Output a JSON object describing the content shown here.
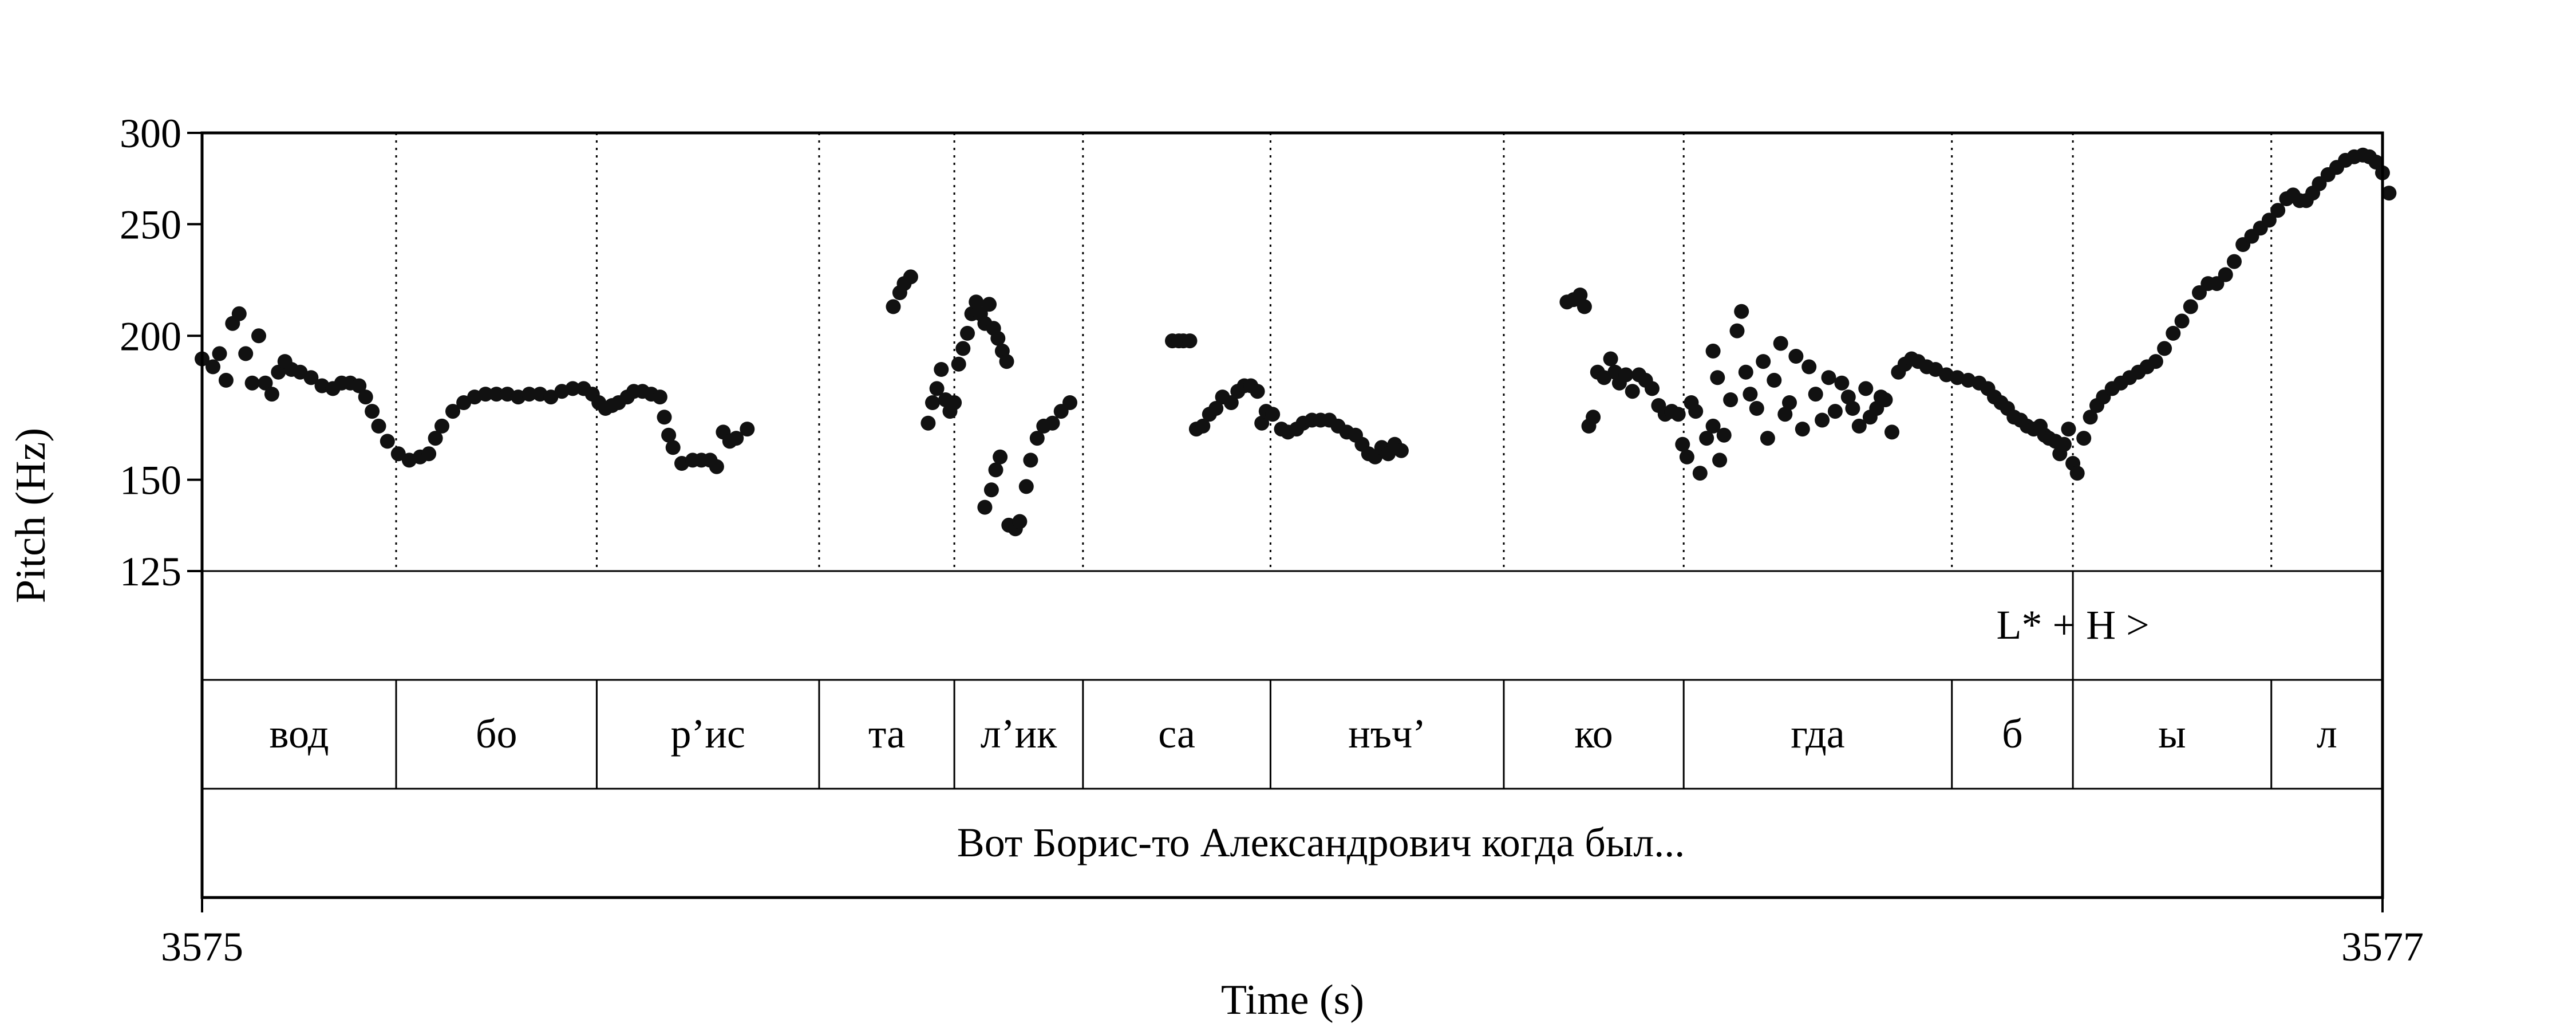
{
  "chart_data": {
    "type": "scatter",
    "xlabel": "Time (s)",
    "ylabel": "Pitch (Hz)",
    "xlim": [
      3575,
      3577
    ],
    "ylim": [
      125,
      300
    ],
    "xticks": [
      "3575",
      "3577"
    ],
    "yticks": [
      {
        "value": 125,
        "label": "125"
      },
      {
        "value": 150,
        "label": "150"
      },
      {
        "value": 200,
        "label": "200"
      },
      {
        "value": 250,
        "label": "250"
      },
      {
        "value": 300,
        "label": "300"
      }
    ],
    "boundaries": [
      3575.178,
      3575.362,
      3575.566,
      3575.69,
      3575.808,
      3575.98,
      3576.194,
      3576.359,
      3576.605,
      3576.716,
      3576.898
    ],
    "tone_tier": [
      {
        "label": "L* + H >",
        "t": 3576.716
      }
    ],
    "syllables": [
      {
        "label": "вод",
        "start": 3575.0,
        "end": 3575.178
      },
      {
        "label": "бо",
        "start": 3575.178,
        "end": 3575.362
      },
      {
        "label": "р’ис",
        "start": 3575.362,
        "end": 3575.566
      },
      {
        "label": "та",
        "start": 3575.566,
        "end": 3575.69
      },
      {
        "label": "л’ик",
        "start": 3575.69,
        "end": 3575.808
      },
      {
        "label": "са",
        "start": 3575.808,
        "end": 3575.98
      },
      {
        "label": "нъч’",
        "start": 3575.98,
        "end": 3576.194
      },
      {
        "label": "ко",
        "start": 3576.194,
        "end": 3576.359
      },
      {
        "label": "гда",
        "start": 3576.359,
        "end": 3576.605
      },
      {
        "label": "б",
        "start": 3576.605,
        "end": 3576.716
      },
      {
        "label": "ы",
        "start": 3576.716,
        "end": 3576.898
      },
      {
        "label": "л",
        "start": 3576.898,
        "end": 3577.0
      }
    ],
    "sentence": "Вот Борис-то Александрович когда был...",
    "pitch_segments": [
      [
        [
          3575.0,
          191
        ],
        [
          3575.01,
          188
        ],
        [
          3575.016,
          193
        ],
        [
          3575.022,
          183
        ],
        [
          3575.028,
          205
        ],
        [
          3575.034,
          209
        ],
        [
          3575.04,
          193
        ],
        [
          3575.046,
          182
        ],
        [
          3575.052,
          200
        ],
        [
          3575.058,
          182
        ],
        [
          3575.064,
          178
        ],
        [
          3575.07,
          186
        ],
        [
          3575.076,
          190
        ],
        [
          3575.082,
          187
        ],
        [
          3575.09,
          186
        ],
        [
          3575.1,
          184
        ],
        [
          3575.11,
          181
        ],
        [
          3575.12,
          180
        ],
        [
          3575.128,
          182
        ],
        [
          3575.136,
          182
        ],
        [
          3575.144,
          181
        ],
        [
          3575.15,
          177
        ],
        [
          3575.156,
          172
        ],
        [
          3575.162,
          167
        ],
        [
          3575.17,
          162
        ],
        [
          3575.18,
          158
        ],
        [
          3575.19,
          156
        ],
        [
          3575.2,
          157
        ],
        [
          3575.208,
          158
        ],
        [
          3575.214,
          163
        ],
        [
          3575.22,
          167
        ],
        [
          3575.23,
          172
        ],
        [
          3575.24,
          175
        ],
        [
          3575.25,
          177
        ],
        [
          3575.26,
          178
        ],
        [
          3575.27,
          178
        ],
        [
          3575.28,
          178
        ],
        [
          3575.29,
          177
        ],
        [
          3575.3,
          178
        ],
        [
          3575.31,
          178
        ],
        [
          3575.32,
          177
        ],
        [
          3575.33,
          179
        ],
        [
          3575.34,
          180
        ],
        [
          3575.35,
          180
        ],
        [
          3575.358,
          178
        ],
        [
          3575.364,
          175
        ],
        [
          3575.37,
          173
        ],
        [
          3575.376,
          174
        ],
        [
          3575.382,
          175
        ],
        [
          3575.39,
          177
        ],
        [
          3575.396,
          179
        ],
        [
          3575.404,
          179
        ],
        [
          3575.412,
          178
        ],
        [
          3575.42,
          177
        ],
        [
          3575.424,
          170
        ],
        [
          3575.428,
          164
        ],
        [
          3575.432,
          160
        ],
        [
          3575.44,
          155
        ],
        [
          3575.45,
          156
        ],
        [
          3575.458,
          156
        ],
        [
          3575.466,
          156
        ],
        [
          3575.472,
          154
        ],
        [
          3575.478,
          165
        ],
        [
          3575.484,
          162
        ],
        [
          3575.49,
          163
        ],
        [
          3575.5,
          166
        ]
      ],
      [
        [
          3575.634,
          212
        ],
        [
          3575.64,
          218
        ],
        [
          3575.644,
          222
        ],
        [
          3575.65,
          225
        ],
        [
          3575.666,
          168
        ],
        [
          3575.67,
          175
        ],
        [
          3575.674,
          180
        ],
        [
          3575.678,
          187
        ],
        [
          3575.682,
          176
        ],
        [
          3575.686,
          172
        ],
        [
          3575.69,
          175
        ],
        [
          3575.694,
          189
        ],
        [
          3575.698,
          195
        ],
        [
          3575.702,
          201
        ],
        [
          3575.706,
          209
        ],
        [
          3575.71,
          214
        ],
        [
          3575.714,
          209
        ],
        [
          3575.718,
          205
        ],
        [
          3575.722,
          213
        ],
        [
          3575.726,
          203
        ],
        [
          3575.73,
          199
        ],
        [
          3575.734,
          194
        ],
        [
          3575.738,
          190
        ],
        [
          3575.718,
          142
        ],
        [
          3575.724,
          147
        ],
        [
          3575.728,
          153
        ],
        [
          3575.732,
          157
        ],
        [
          3575.74,
          137
        ],
        [
          3575.746,
          136
        ],
        [
          3575.75,
          138
        ],
        [
          3575.756,
          148
        ],
        [
          3575.76,
          156
        ],
        [
          3575.766,
          163
        ],
        [
          3575.772,
          167
        ],
        [
          3575.78,
          168
        ],
        [
          3575.788,
          172
        ],
        [
          3575.796,
          175
        ]
      ],
      [
        [
          3575.89,
          198
        ],
        [
          3575.896,
          198
        ],
        [
          3575.9,
          198
        ],
        [
          3575.906,
          198
        ],
        [
          3575.912,
          166
        ],
        [
          3575.918,
          167
        ],
        [
          3575.924,
          171
        ],
        [
          3575.93,
          173
        ],
        [
          3575.936,
          177
        ],
        [
          3575.944,
          175
        ],
        [
          3575.95,
          179
        ],
        [
          3575.956,
          181
        ],
        [
          3575.962,
          181
        ],
        [
          3575.968,
          179
        ],
        [
          3575.972,
          168
        ],
        [
          3575.976,
          172
        ],
        [
          3575.982,
          171
        ],
        [
          3575.99,
          166
        ],
        [
          3575.996,
          165
        ],
        [
          3576.004,
          166
        ],
        [
          3576.01,
          168
        ],
        [
          3576.018,
          169
        ],
        [
          3576.026,
          169
        ],
        [
          3576.034,
          169
        ],
        [
          3576.042,
          167
        ],
        [
          3576.05,
          165
        ],
        [
          3576.058,
          164
        ],
        [
          3576.064,
          161
        ],
        [
          3576.07,
          158
        ],
        [
          3576.076,
          157
        ],
        [
          3576.082,
          160
        ],
        [
          3576.088,
          158
        ],
        [
          3576.094,
          161
        ],
        [
          3576.1,
          159
        ]
      ],
      [
        [
          3576.252,
          214
        ],
        [
          3576.258,
          215
        ],
        [
          3576.264,
          217
        ],
        [
          3576.268,
          212
        ],
        [
          3576.272,
          167
        ],
        [
          3576.276,
          170
        ],
        [
          3576.28,
          186
        ],
        [
          3576.286,
          184
        ],
        [
          3576.292,
          191
        ],
        [
          3576.296,
          186
        ],
        [
          3576.3,
          182
        ],
        [
          3576.306,
          185
        ],
        [
          3576.312,
          179
        ],
        [
          3576.318,
          185
        ],
        [
          3576.324,
          183
        ],
        [
          3576.33,
          180
        ],
        [
          3576.336,
          174
        ],
        [
          3576.342,
          171
        ],
        [
          3576.348,
          172
        ],
        [
          3576.354,
          171
        ],
        [
          3576.358,
          161
        ],
        [
          3576.362,
          157
        ],
        [
          3576.366,
          175
        ],
        [
          3576.37,
          172
        ],
        [
          3576.374,
          152
        ],
        [
          3576.38,
          163
        ],
        [
          3576.386,
          167
        ],
        [
          3576.392,
          156
        ],
        [
          3576.386,
          194
        ],
        [
          3576.39,
          184
        ],
        [
          3576.396,
          164
        ],
        [
          3576.402,
          176
        ],
        [
          3576.408,
          202
        ],
        [
          3576.412,
          210
        ],
        [
          3576.416,
          186
        ],
        [
          3576.42,
          178
        ],
        [
          3576.426,
          173
        ],
        [
          3576.432,
          190
        ],
        [
          3576.436,
          163
        ],
        [
          3576.442,
          183
        ],
        [
          3576.448,
          197
        ],
        [
          3576.452,
          171
        ],
        [
          3576.456,
          175
        ],
        [
          3576.462,
          192
        ],
        [
          3576.468,
          166
        ],
        [
          3576.474,
          188
        ],
        [
          3576.48,
          178
        ],
        [
          3576.486,
          169
        ],
        [
          3576.492,
          184
        ],
        [
          3576.498,
          172
        ],
        [
          3576.504,
          182
        ],
        [
          3576.51,
          177
        ],
        [
          3576.514,
          173
        ],
        [
          3576.52,
          167
        ],
        [
          3576.526,
          180
        ],
        [
          3576.53,
          170
        ],
        [
          3576.536,
          173
        ],
        [
          3576.54,
          177
        ],
        [
          3576.544,
          176
        ],
        [
          3576.55,
          165
        ],
        [
          3576.556,
          186
        ],
        [
          3576.562,
          189
        ],
        [
          3576.568,
          191
        ],
        [
          3576.574,
          190
        ],
        [
          3576.582,
          188
        ],
        [
          3576.59,
          187
        ],
        [
          3576.6,
          185
        ],
        [
          3576.61,
          184
        ],
        [
          3576.62,
          183
        ],
        [
          3576.63,
          182
        ],
        [
          3576.638,
          180
        ],
        [
          3576.644,
          177
        ],
        [
          3576.65,
          175
        ],
        [
          3576.656,
          173
        ],
        [
          3576.662,
          170
        ],
        [
          3576.668,
          169
        ],
        [
          3576.674,
          167
        ],
        [
          3576.68,
          166
        ],
        [
          3576.686,
          167
        ],
        [
          3576.69,
          164
        ],
        [
          3576.694,
          163
        ],
        [
          3576.7,
          162
        ],
        [
          3576.704,
          158
        ],
        [
          3576.708,
          161
        ],
        [
          3576.712,
          166
        ],
        [
          3576.716,
          155
        ],
        [
          3576.72,
          152
        ],
        [
          3576.726,
          163
        ],
        [
          3576.732,
          170
        ],
        [
          3576.738,
          174
        ],
        [
          3576.744,
          177
        ],
        [
          3576.752,
          180
        ],
        [
          3576.76,
          182
        ],
        [
          3576.768,
          184
        ],
        [
          3576.776,
          186
        ],
        [
          3576.784,
          188
        ],
        [
          3576.792,
          190
        ],
        [
          3576.8,
          195
        ],
        [
          3576.808,
          201
        ],
        [
          3576.816,
          206
        ],
        [
          3576.824,
          212
        ],
        [
          3576.832,
          218
        ],
        [
          3576.84,
          222
        ],
        [
          3576.848,
          222
        ],
        [
          3576.856,
          226
        ],
        [
          3576.864,
          232
        ],
        [
          3576.872,
          240
        ],
        [
          3576.88,
          244
        ],
        [
          3576.888,
          248
        ],
        [
          3576.896,
          252
        ],
        [
          3576.904,
          257
        ],
        [
          3576.912,
          263
        ],
        [
          3576.918,
          265
        ],
        [
          3576.924,
          262
        ],
        [
          3576.93,
          262
        ],
        [
          3576.936,
          266
        ],
        [
          3576.942,
          271
        ],
        [
          3576.95,
          276
        ],
        [
          3576.958,
          280
        ],
        [
          3576.966,
          284
        ],
        [
          3576.974,
          286
        ],
        [
          3576.982,
          287
        ],
        [
          3576.988,
          286
        ],
        [
          3576.994,
          283
        ],
        [
          3577.0,
          277
        ],
        [
          3577.006,
          266
        ]
      ]
    ]
  }
}
